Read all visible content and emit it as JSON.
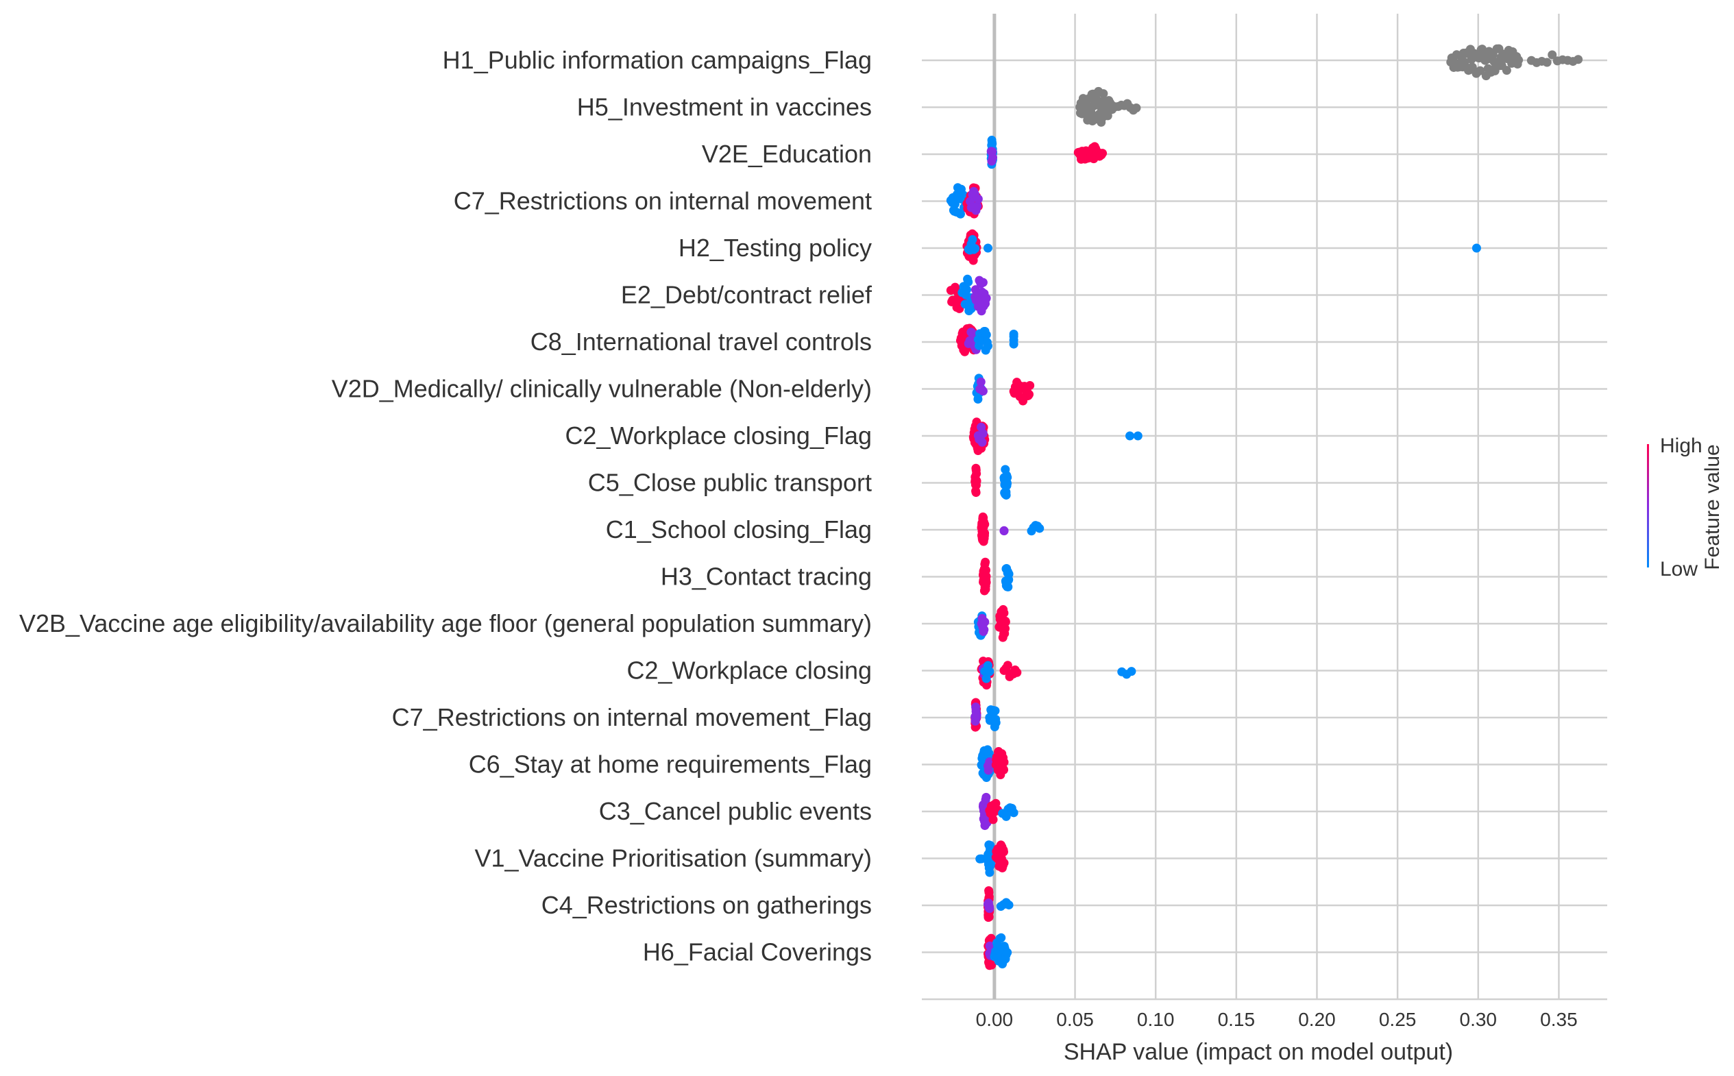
{
  "chart_data": {
    "type": "scatter",
    "subtype": "shap-beeswarm",
    "xlabel": "SHAP value (impact on model output)",
    "xlim": [
      -0.045,
      0.38
    ],
    "xticks": [
      0.0,
      0.05,
      0.1,
      0.15,
      0.2,
      0.25,
      0.3,
      0.35
    ],
    "xtick_labels": [
      "0.00",
      "0.05",
      "0.10",
      "0.15",
      "0.20",
      "0.25",
      "0.30",
      "0.35"
    ],
    "grid": "vertical and horizontal",
    "colorbar": {
      "title": "Feature value",
      "high_label": "High",
      "low_label": "Low",
      "high_color": "#ff0052",
      "mid_color": "#8a2be2",
      "low_color": "#008bfb"
    },
    "no_value_color": "#808080",
    "features": [
      {
        "name": "H1_Public information campaigns_Flag",
        "clusters": [
          {
            "from": 0.283,
            "to": 0.325,
            "n": 70,
            "spread": 1.0,
            "color": "none"
          },
          {
            "from": 0.333,
            "to": 0.362,
            "n": 10,
            "spread": 0.35,
            "color": "none"
          }
        ]
      },
      {
        "name": "H5_Investment in vaccines",
        "clusters": [
          {
            "from": 0.053,
            "to": 0.073,
            "n": 60,
            "spread": 1.0,
            "color": "none"
          },
          {
            "from": 0.075,
            "to": 0.088,
            "n": 8,
            "spread": 0.3,
            "color": "none"
          }
        ]
      },
      {
        "name": "V2E_Education",
        "clusters": [
          {
            "from": -0.002,
            "to": -0.001,
            "n": 24,
            "spread": 0.9,
            "color": "low"
          },
          {
            "from": -0.002,
            "to": -0.001,
            "n": 4,
            "spread": 0.6,
            "color": "mid"
          },
          {
            "from": 0.052,
            "to": 0.067,
            "n": 26,
            "spread": 0.55,
            "color": "high"
          }
        ]
      },
      {
        "name": "C7_Restrictions on internal movement",
        "clusters": [
          {
            "from": -0.027,
            "to": -0.018,
            "n": 22,
            "spread": 0.9,
            "color": "low"
          },
          {
            "from": -0.017,
            "to": -0.01,
            "n": 20,
            "spread": 1.0,
            "color": "high"
          },
          {
            "from": -0.015,
            "to": -0.01,
            "n": 8,
            "spread": 0.8,
            "color": "mid"
          }
        ]
      },
      {
        "name": "H2_Testing policy",
        "clusters": [
          {
            "from": -0.017,
            "to": -0.011,
            "n": 30,
            "spread": 1.0,
            "color": "high"
          },
          {
            "from": -0.016,
            "to": -0.012,
            "n": 6,
            "spread": 0.7,
            "color": "low"
          },
          {
            "from": -0.004,
            "to": -0.004,
            "n": 1,
            "spread": 0,
            "color": "low"
          },
          {
            "from": 0.299,
            "to": 0.299,
            "n": 1,
            "spread": 0,
            "color": "low"
          }
        ]
      },
      {
        "name": "E2_Debt/contract relief",
        "clusters": [
          {
            "from": -0.027,
            "to": -0.018,
            "n": 18,
            "spread": 0.9,
            "color": "high"
          },
          {
            "from": -0.02,
            "to": -0.012,
            "n": 18,
            "spread": 1.0,
            "color": "low"
          },
          {
            "from": -0.012,
            "to": -0.005,
            "n": 22,
            "spread": 1.0,
            "color": "mid"
          }
        ]
      },
      {
        "name": "C8_International travel controls",
        "clusters": [
          {
            "from": -0.021,
            "to": -0.011,
            "n": 28,
            "spread": 1.0,
            "color": "high"
          },
          {
            "from": -0.016,
            "to": -0.009,
            "n": 10,
            "spread": 0.8,
            "color": "mid"
          },
          {
            "from": -0.01,
            "to": -0.004,
            "n": 14,
            "spread": 0.8,
            "color": "low"
          },
          {
            "from": 0.012,
            "to": 0.012,
            "n": 4,
            "spread": 0.6,
            "color": "low"
          }
        ]
      },
      {
        "name": "V2D_Medically/ clinically vulnerable (Non-elderly)",
        "clusters": [
          {
            "from": -0.011,
            "to": -0.008,
            "n": 12,
            "spread": 0.8,
            "color": "low"
          },
          {
            "from": -0.009,
            "to": -0.007,
            "n": 4,
            "spread": 0.5,
            "color": "mid"
          },
          {
            "from": 0.012,
            "to": 0.022,
            "n": 22,
            "spread": 0.8,
            "color": "high"
          }
        ]
      },
      {
        "name": "C2_Workplace closing_Flag",
        "clusters": [
          {
            "from": -0.013,
            "to": -0.006,
            "n": 40,
            "spread": 1.0,
            "color": "high"
          },
          {
            "from": -0.01,
            "to": -0.007,
            "n": 6,
            "spread": 0.6,
            "color": "mid"
          },
          {
            "from": 0.084,
            "to": 0.089,
            "n": 2,
            "spread": 0,
            "color": "low"
          }
        ]
      },
      {
        "name": "C5_Close public transport",
        "clusters": [
          {
            "from": -0.012,
            "to": -0.011,
            "n": 14,
            "spread": 0.9,
            "color": "high"
          },
          {
            "from": 0.006,
            "to": 0.008,
            "n": 22,
            "spread": 1.0,
            "color": "low"
          }
        ]
      },
      {
        "name": "C1_School closing_Flag",
        "clusters": [
          {
            "from": -0.008,
            "to": -0.006,
            "n": 28,
            "spread": 1.0,
            "color": "high"
          },
          {
            "from": 0.006,
            "to": 0.006,
            "n": 2,
            "spread": 0.2,
            "color": "mid"
          },
          {
            "from": 0.023,
            "to": 0.028,
            "n": 5,
            "spread": 0.4,
            "color": "low"
          }
        ]
      },
      {
        "name": "H3_Contact tracing",
        "clusters": [
          {
            "from": -0.007,
            "to": -0.005,
            "n": 32,
            "spread": 1.0,
            "color": "high"
          },
          {
            "from": 0.007,
            "to": 0.009,
            "n": 16,
            "spread": 0.8,
            "color": "low"
          }
        ]
      },
      {
        "name": "V2B_Vaccine age eligibility/availability age floor (general population summary)",
        "clusters": [
          {
            "from": -0.01,
            "to": -0.007,
            "n": 14,
            "spread": 0.9,
            "color": "low"
          },
          {
            "from": -0.008,
            "to": -0.006,
            "n": 6,
            "spread": 0.6,
            "color": "mid"
          },
          {
            "from": 0.003,
            "to": 0.007,
            "n": 24,
            "spread": 1.0,
            "color": "high"
          }
        ]
      },
      {
        "name": "C2_Workplace closing",
        "clusters": [
          {
            "from": -0.008,
            "to": -0.003,
            "n": 20,
            "spread": 1.0,
            "color": "high"
          },
          {
            "from": -0.007,
            "to": -0.004,
            "n": 6,
            "spread": 0.7,
            "color": "mid"
          },
          {
            "from": -0.006,
            "to": -0.003,
            "n": 4,
            "spread": 0.6,
            "color": "low"
          },
          {
            "from": 0.006,
            "to": 0.014,
            "n": 8,
            "spread": 0.4,
            "color": "high"
          },
          {
            "from": 0.079,
            "to": 0.085,
            "n": 3,
            "spread": 0.3,
            "color": "low"
          }
        ]
      },
      {
        "name": "C7_Restrictions on internal movement_Flag",
        "clusters": [
          {
            "from": -0.012,
            "to": -0.011,
            "n": 20,
            "spread": 1.0,
            "color": "high"
          },
          {
            "from": -0.012,
            "to": -0.011,
            "n": 6,
            "spread": 0.7,
            "color": "mid"
          },
          {
            "from": -0.003,
            "to": 0.001,
            "n": 16,
            "spread": 1.0,
            "color": "low"
          }
        ]
      },
      {
        "name": "C6_Stay at home requirements_Flag",
        "clusters": [
          {
            "from": -0.008,
            "to": -0.002,
            "n": 36,
            "spread": 1.0,
            "color": "low"
          },
          {
            "from": -0.004,
            "to": -0.003,
            "n": 4,
            "spread": 0.5,
            "color": "mid"
          },
          {
            "from": 0.001,
            "to": 0.006,
            "n": 26,
            "spread": 0.9,
            "color": "high"
          }
        ]
      },
      {
        "name": "C3_Cancel public events",
        "clusters": [
          {
            "from": -0.007,
            "to": -0.004,
            "n": 28,
            "spread": 1.0,
            "color": "mid"
          },
          {
            "from": -0.003,
            "to": 0.002,
            "n": 10,
            "spread": 0.7,
            "color": "high"
          },
          {
            "from": 0.005,
            "to": 0.012,
            "n": 7,
            "spread": 0.4,
            "color": "low"
          }
        ]
      },
      {
        "name": "V1_Vaccine Prioritisation (summary)",
        "clusters": [
          {
            "from": -0.009,
            "to": -0.008,
            "n": 2,
            "spread": 0.1,
            "color": "low"
          },
          {
            "from": -0.004,
            "to": -0.002,
            "n": 22,
            "spread": 1.0,
            "color": "low"
          },
          {
            "from": 0.001,
            "to": 0.006,
            "n": 24,
            "spread": 1.0,
            "color": "high"
          }
        ]
      },
      {
        "name": "C4_Restrictions on gatherings",
        "clusters": [
          {
            "from": -0.004,
            "to": -0.003,
            "n": 26,
            "spread": 1.0,
            "color": "high"
          },
          {
            "from": -0.004,
            "to": -0.003,
            "n": 6,
            "spread": 0.6,
            "color": "mid"
          },
          {
            "from": 0.004,
            "to": 0.009,
            "n": 4,
            "spread": 0.3,
            "color": "low"
          }
        ]
      },
      {
        "name": "H6_Facial Coverings",
        "clusters": [
          {
            "from": -0.004,
            "to": -0.001,
            "n": 28,
            "spread": 1.0,
            "color": "high"
          },
          {
            "from": -0.003,
            "to": -0.002,
            "n": 6,
            "spread": 0.6,
            "color": "mid"
          },
          {
            "from": 0.0,
            "to": 0.008,
            "n": 22,
            "spread": 0.9,
            "color": "low"
          }
        ]
      }
    ]
  }
}
